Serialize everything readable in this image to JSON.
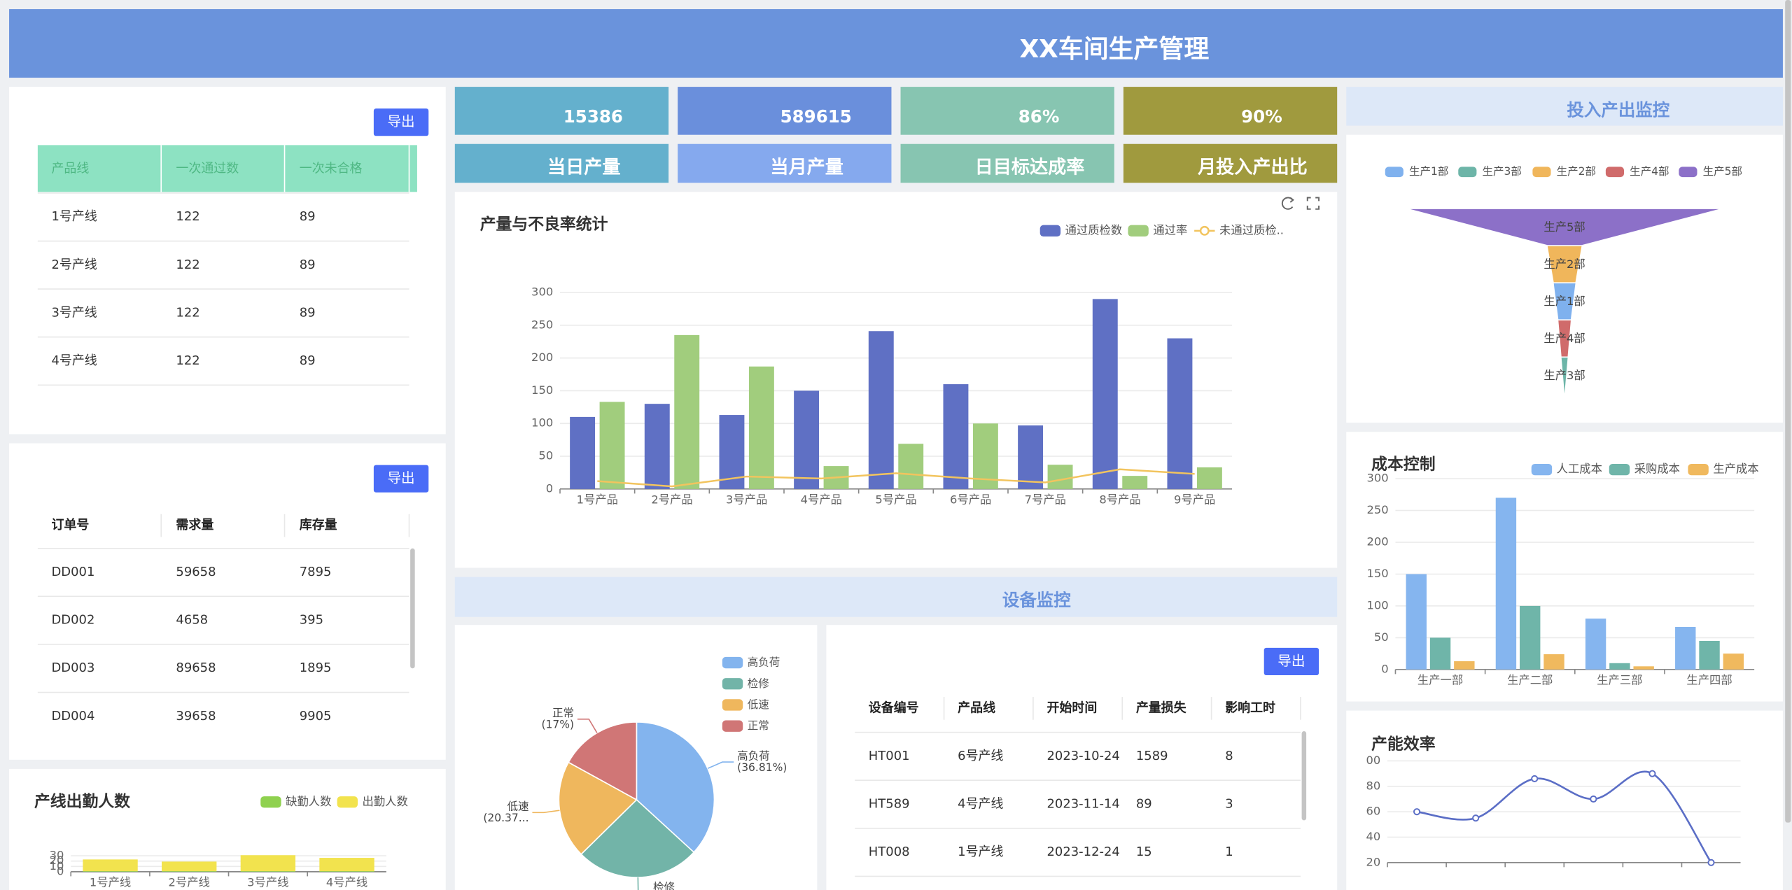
{
  "header": {
    "title": "XX车间生产管理"
  },
  "kpis": [
    {
      "value": "15386",
      "label": "当日产量"
    },
    {
      "value": "589615",
      "label": "当月产量"
    },
    {
      "value": "86%",
      "label": "日目标达成率"
    },
    {
      "value": "90%",
      "label": "月投入产出比"
    }
  ],
  "product_table": {
    "export": "导出",
    "columns": [
      "产品线",
      "一次通过数",
      "一次未合格"
    ],
    "rows": [
      [
        "1号产线",
        "122",
        "89"
      ],
      [
        "2号产线",
        "122",
        "89"
      ],
      [
        "3号产线",
        "122",
        "89"
      ],
      [
        "4号产线",
        "122",
        "89"
      ]
    ]
  },
  "order_table": {
    "export": "导出",
    "columns": [
      "订单号",
      "需求量",
      "库存量"
    ],
    "rows": [
      [
        "DD001",
        "59658",
        "7895"
      ],
      [
        "DD002",
        "4658",
        "395"
      ],
      [
        "DD003",
        "89658",
        "1895"
      ],
      [
        "DD004",
        "39658",
        "9905"
      ]
    ]
  },
  "equipment": {
    "title": "设备监控",
    "export": "导出",
    "columns": [
      "设备编号",
      "产品线",
      "开始时间",
      "产量损失",
      "影响工时"
    ],
    "rows": [
      [
        "HT001",
        "6号产线",
        "2023-10-24",
        "1589",
        "8"
      ],
      [
        "HT589",
        "4号产线",
        "2023-11-14",
        "89",
        "3"
      ],
      [
        "HT008",
        "1号产线",
        "2023-12-24",
        "15",
        "1"
      ]
    ]
  },
  "io_monitor": {
    "title": "投入产出监控"
  },
  "chart_data": [
    {
      "type": "bar",
      "title": "产量与不良率统计",
      "categories": [
        "1号产品",
        "2号产品",
        "3号产品",
        "4号产品",
        "5号产品",
        "6号产品",
        "7号产品",
        "8号产品",
        "9号产品"
      ],
      "series": [
        {
          "name": "通过质检数",
          "color": "#5f70c4",
          "values": [
            110,
            130,
            113,
            150,
            241,
            160,
            97,
            290,
            230
          ]
        },
        {
          "name": "通过率",
          "color": "#a1cd7d",
          "values": [
            133,
            235,
            187,
            35,
            69,
            100,
            37,
            20,
            33
          ]
        },
        {
          "name": "未通过质检..",
          "type": "line",
          "color": "#f2c45e",
          "values": [
            12,
            4,
            19,
            16,
            24,
            16,
            10,
            30,
            23
          ]
        }
      ],
      "ylim": [
        0,
        300
      ],
      "yticks": [
        0,
        50,
        100,
        150,
        200,
        250,
        300
      ],
      "grid": true
    },
    {
      "type": "funnel",
      "categories": [
        "生产1部",
        "生产3部",
        "生产2部",
        "生产4部",
        "生产5部"
      ],
      "values": [
        7,
        2,
        11,
        4,
        100
      ],
      "colors": [
        "#7fb1ee",
        "#6db5a8",
        "#f0b65b",
        "#d06b6b",
        "#8c70c8"
      ]
    },
    {
      "type": "bar",
      "title": "成本控制",
      "categories": [
        "生产一部",
        "生产二部",
        "生产三部",
        "生产四部"
      ],
      "series": [
        {
          "name": "人工成本",
          "color": "#85b5ef",
          "values": [
            150,
            270,
            80,
            67
          ]
        },
        {
          "name": "采购成本",
          "color": "#6fb5a9",
          "values": [
            50,
            100,
            10,
            45
          ]
        },
        {
          "name": "生产成本",
          "color": "#f0b95e",
          "values": [
            13,
            24,
            5,
            25
          ]
        }
      ],
      "ylim": [
        0,
        300
      ],
      "yticks": [
        0,
        50,
        100,
        150,
        200,
        250,
        300
      ],
      "grid": true
    },
    {
      "type": "line",
      "title": "产能效率",
      "categories": [
        null,
        null,
        null,
        null,
        null,
        null
      ],
      "values": [
        60,
        55,
        86,
        70,
        90,
        20
      ],
      "color": "#5b6ec6",
      "smooth": true,
      "ylim": [
        20,
        100
      ],
      "yticks": [
        20,
        40,
        60,
        80,
        {
          "value": 100,
          "label": "00"
        }
      ],
      "grid": true
    },
    {
      "type": "pie",
      "categories": [
        "高负荷",
        "检修",
        "低速",
        "正常"
      ],
      "values": [
        36.81,
        25.82,
        20.37,
        17
      ],
      "value_labels": [
        "(36.81%)",
        null,
        "(20.37...",
        "(17%)"
      ],
      "colors": [
        "#83b4ee",
        "#72b4a8",
        "#efb75d",
        "#d07676"
      ]
    },
    {
      "type": "bar",
      "title": "产线出勤人数",
      "stacked": true,
      "categories": [
        "1号产线",
        "2号产线",
        "3号产线",
        "4号产线"
      ],
      "series": [
        {
          "name": "缺勤人数",
          "color": "#8fd14f",
          "values": [
            1,
            1,
            1,
            1
          ]
        },
        {
          "name": "出勤人数",
          "color": "#f2e34e",
          "values": [
            22,
            18,
            30,
            25
          ]
        }
      ],
      "ylim": [
        0,
        30
      ],
      "yticks": [
        0,
        10,
        20,
        30
      ],
      "grid": true
    }
  ]
}
